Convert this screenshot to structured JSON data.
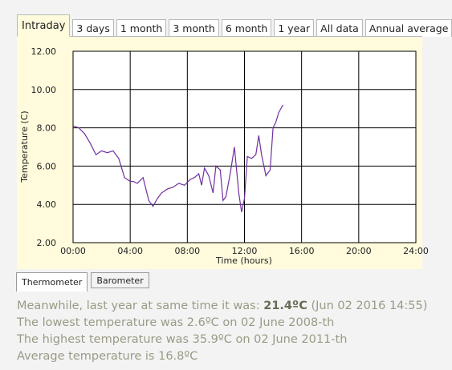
{
  "tabs": [
    {
      "label": "Intraday",
      "active": true
    },
    {
      "label": "3 days",
      "active": false
    },
    {
      "label": "1 month",
      "active": false
    },
    {
      "label": "3 month",
      "active": false
    },
    {
      "label": "6 month",
      "active": false
    },
    {
      "label": "1 year",
      "active": false
    },
    {
      "label": "All data",
      "active": false
    },
    {
      "label": "Annual average",
      "active": false
    }
  ],
  "subtabs": [
    {
      "label": "Thermometer",
      "active": true
    },
    {
      "label": "Barometer",
      "active": false
    }
  ],
  "info": {
    "last_year_prefix": "Meanwhile, last year at same time it was: ",
    "last_year_value": "21.4ºC",
    "last_year_suffix": " (Jun 02 2016 14:55)",
    "lowest": "The lowest temperature was 2.6ºC on 02 June 2008-th",
    "highest": "The highest temperature was 35.9ºC on 02 June 2011-th",
    "average": "Average temperature is 16.8ºC"
  },
  "chart_data": {
    "type": "line",
    "xlabel": "Time (hours)",
    "ylabel": "Temperature (C)",
    "xlim": [
      0,
      24
    ],
    "ylim": [
      2,
      12
    ],
    "x_ticks": [
      "00:00",
      "04:00",
      "08:00",
      "12:00",
      "16:00",
      "20:00",
      "24:00"
    ],
    "y_ticks": [
      "2.00",
      "4.00",
      "6.00",
      "8.00",
      "10.00",
      "12.00"
    ],
    "grid": true,
    "line_color": "#7030a0",
    "series": [
      {
        "x": [
          0,
          0.4,
          0.8,
          1.2,
          1.6,
          2.0,
          2.4,
          2.8,
          3.2,
          3.6,
          4.0,
          4.2,
          4.5,
          4.9,
          5.3,
          5.6,
          5.9,
          6.2,
          6.6,
          7.0,
          7.4,
          7.8,
          8.2,
          8.5,
          8.8,
          9.0,
          9.2,
          9.5,
          9.8,
          10.0,
          10.3,
          10.5,
          10.7,
          11.0,
          11.3,
          11.6,
          11.8,
          12.0,
          12.2,
          12.5,
          12.8,
          13.0,
          13.2,
          13.5,
          13.8,
          14.0,
          14.2,
          14.4,
          14.7
        ],
        "y": [
          8.1,
          8.0,
          7.7,
          7.2,
          6.6,
          6.8,
          6.7,
          6.8,
          6.4,
          5.4,
          5.2,
          5.2,
          5.1,
          5.4,
          4.2,
          3.9,
          4.3,
          4.6,
          4.8,
          4.9,
          5.1,
          5.0,
          5.3,
          5.4,
          5.6,
          5.0,
          5.9,
          5.5,
          4.6,
          6.0,
          5.8,
          4.2,
          4.4,
          5.6,
          7.0,
          4.6,
          3.6,
          4.3,
          6.5,
          6.4,
          6.6,
          7.6,
          6.6,
          5.5,
          5.8,
          8.0,
          8.3,
          8.8,
          9.2
        ]
      }
    ]
  }
}
